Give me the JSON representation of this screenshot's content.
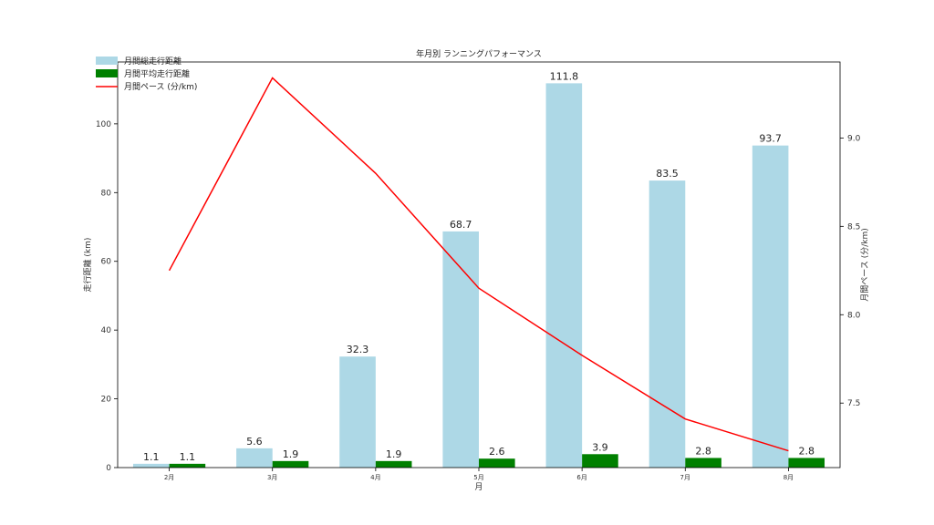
{
  "chart_data": {
    "type": "bar",
    "title": "年月別 ランニングパフォーマンス",
    "xlabel": "月",
    "ylabel": "走行距離 (km)",
    "y2label": "月間ペース (分/km)",
    "categories": [
      "2月",
      "3月",
      "4月",
      "5月",
      "6月",
      "7月",
      "8月"
    ],
    "series": [
      {
        "name": "月間総走行距離",
        "kind": "bar",
        "axis": "left",
        "color": "#add8e6",
        "values": [
          1.1,
          5.6,
          32.3,
          68.7,
          111.8,
          83.5,
          93.7
        ]
      },
      {
        "name": "月間平均走行距離",
        "kind": "bar",
        "axis": "left",
        "color": "#008000",
        "values": [
          1.1,
          1.9,
          1.9,
          2.6,
          3.9,
          2.8,
          2.8
        ]
      },
      {
        "name": "月間ペース (分/km)",
        "kind": "line",
        "axis": "right",
        "color": "#ff0000",
        "values": [
          8.25,
          9.34,
          8.8,
          8.15,
          7.77,
          7.41,
          7.23
        ]
      }
    ],
    "ylim": [
      0,
      118
    ],
    "yticks": [
      0,
      20,
      40,
      60,
      80,
      100
    ],
    "y2lim": [
      7.135,
      9.43
    ],
    "y2ticks": [
      7.5,
      8.0,
      8.5,
      9.0
    ],
    "y2tick_labels": [
      "7.5",
      "8.0",
      "8.5",
      "9.0"
    ],
    "legend_position": "top-left",
    "grid": false
  }
}
